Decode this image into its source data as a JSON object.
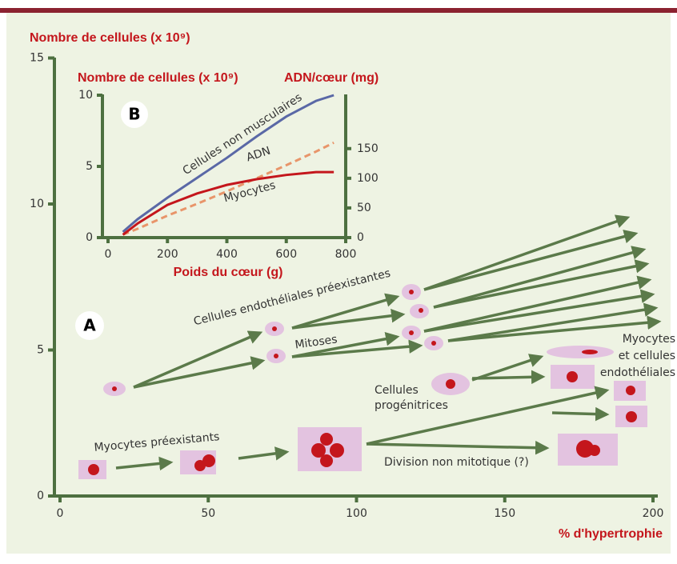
{
  "chart_data": [
    {
      "type": "axes",
      "panel": "A",
      "ylabel": "Nombre de cellules (x 10⁹)",
      "xlabel": "% d'hypertrophie",
      "xlim": [
        0,
        200
      ],
      "ylim": [
        0,
        15
      ],
      "xticks": [
        0,
        50,
        100,
        150,
        200
      ],
      "yticks": [
        0,
        5,
        10,
        15
      ],
      "annotations": [
        "Cellules endothéliales préexistantes",
        "Mitoses",
        "Cellules",
        "progénitrices",
        "Myocytes",
        "et cellules",
        "endothéliales",
        "Myocytes préexistants",
        "Division non mitotique (?)"
      ]
    },
    {
      "type": "line",
      "panel": "B",
      "ylabel": "Nombre de cellules (x 10⁹)",
      "y2label": "ADN/cœur (mg)",
      "xlabel": "Poids du cœur (g)",
      "x": [
        50,
        100,
        200,
        300,
        400,
        500,
        600,
        700,
        760
      ],
      "xlim": [
        0,
        800
      ],
      "ylim": [
        0,
        10
      ],
      "y2lim": [
        0,
        240
      ],
      "xticks": [
        0,
        200,
        400,
        600,
        800
      ],
      "yticks": [
        0,
        5,
        10
      ],
      "y2ticks": [
        0,
        50,
        100,
        150
      ],
      "series": [
        {
          "name": "Cellules non musculaires",
          "color": "#5a68a6",
          "values": [
            0.4,
            1.3,
            2.8,
            4.2,
            5.6,
            7.1,
            8.5,
            9.6,
            10
          ]
        },
        {
          "name": "ADN",
          "color": "#e8956a",
          "dashed": true,
          "axis": "y2",
          "values": [
            5,
            15,
            37,
            57,
            78,
            100,
            122,
            145,
            160
          ]
        },
        {
          "name": "Myocytes",
          "color": "#c4161c",
          "values": [
            0.2,
            1.0,
            2.3,
            3.1,
            3.7,
            4.1,
            4.4,
            4.6,
            4.6
          ]
        }
      ]
    }
  ]
}
